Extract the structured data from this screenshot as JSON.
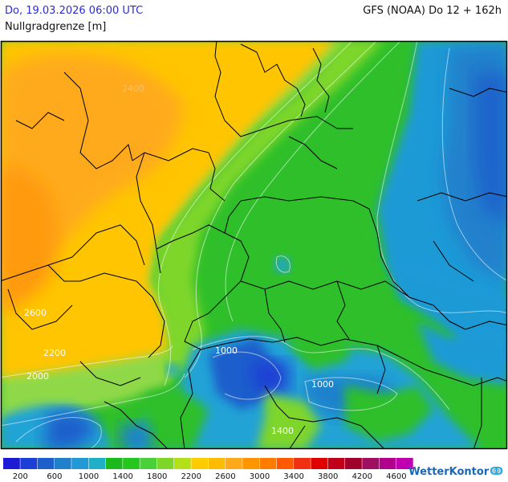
{
  "header": {
    "datetime": "Do, 19.03.2026 06:00 UTC",
    "model_run": "GFS (NOAA) Do 12 + 162h",
    "parameter": "Nullgradgrenze [m]"
  },
  "map": {
    "contour_labels": [
      {
        "text": "2400",
        "color": "#f2c27a"
      },
      {
        "text": "2600",
        "color": "#ffffff"
      },
      {
        "text": "2200",
        "color": "#ffffff"
      },
      {
        "text": "2000",
        "color": "#ffffff"
      },
      {
        "text": "1000",
        "color": "#ffffff"
      },
      {
        "text": "1000",
        "color": "#ffffff"
      },
      {
        "text": "1400",
        "color": "#ffffff"
      }
    ]
  },
  "legend": {
    "colors": [
      "#1b1bd6",
      "#1c3fd6",
      "#1f5fcc",
      "#2080cc",
      "#2199d6",
      "#1fb0c8",
      "#1bb91b",
      "#25c71f",
      "#4ad13a",
      "#7ed62b",
      "#b3e019",
      "#ffcc00",
      "#ffbb00",
      "#ffa81c",
      "#ff9500",
      "#ff7c00",
      "#ff5a00",
      "#f03010",
      "#e00000",
      "#c00018",
      "#a0002c",
      "#a01060",
      "#b0008c",
      "#c000b0"
    ],
    "labels": [
      "200",
      "600",
      "1000",
      "1400",
      "1800",
      "2200",
      "2600",
      "3000",
      "3400",
      "3800",
      "4200",
      "4600"
    ]
  },
  "brand": {
    "name": "WetterKontor",
    "mark": "ↂ"
  }
}
